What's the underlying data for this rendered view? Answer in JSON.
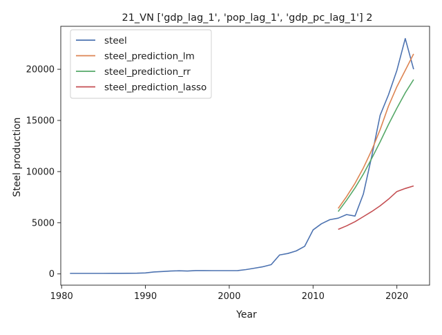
{
  "chart_data": {
    "type": "line",
    "title": "21_VN ['gdp_lag_1', 'pop_lag_1', 'gdp_pc_lag_1'] 2",
    "xlabel": "Year",
    "ylabel": "Steel production",
    "xlim": [
      1979.9,
      2023.9
    ],
    "ylim": [
      -1100,
      24200
    ],
    "xticks": [
      1980,
      1990,
      2000,
      2010,
      2020
    ],
    "yticks": [
      0,
      5000,
      10000,
      15000,
      20000
    ],
    "grid": false,
    "legend_position": "top-left",
    "series": [
      {
        "name": "steel",
        "color": "#4c72b0",
        "x": [
          1981,
          1982,
          1983,
          1984,
          1985,
          1986,
          1987,
          1988,
          1989,
          1990,
          1991,
          1992,
          1993,
          1994,
          1995,
          1996,
          1997,
          1998,
          1999,
          2000,
          2001,
          2002,
          2003,
          2004,
          2005,
          2006,
          2007,
          2008,
          2009,
          2010,
          2011,
          2012,
          2013,
          2014,
          2015,
          2016,
          2017,
          2018,
          2019,
          2020,
          2021,
          2022
        ],
        "y": [
          50,
          50,
          50,
          50,
          50,
          55,
          60,
          65,
          70,
          100,
          190,
          230,
          280,
          310,
          280,
          330,
          330,
          320,
          320,
          320,
          330,
          420,
          560,
          700,
          900,
          1850,
          2000,
          2250,
          2700,
          4300,
          4900,
          5300,
          5450,
          5800,
          5650,
          7800,
          11500,
          15500,
          17500,
          19900,
          23000,
          20000
        ]
      },
      {
        "name": "steel_prediction_lm",
        "color": "#dd8452",
        "x": [
          2013,
          2014,
          2015,
          2016,
          2017,
          2018,
          2019,
          2020,
          2021,
          2022
        ],
        "y": [
          6400,
          7550,
          8850,
          10350,
          12100,
          14100,
          16400,
          18300,
          19900,
          21500
        ]
      },
      {
        "name": "steel_prediction_rr",
        "color": "#55a868",
        "x": [
          2013,
          2014,
          2015,
          2016,
          2017,
          2018,
          2019,
          2020,
          2021,
          2022
        ],
        "y": [
          6100,
          7200,
          8400,
          9750,
          11300,
          12900,
          14600,
          16200,
          17700,
          19000
        ]
      },
      {
        "name": "steel_prediction_lasso",
        "color": "#c44e52",
        "x": [
          2013,
          2014,
          2015,
          2016,
          2017,
          2018,
          2019,
          2020,
          2021,
          2022
        ],
        "y": [
          4350,
          4700,
          5100,
          5600,
          6100,
          6650,
          7300,
          8050,
          8350,
          8600
        ]
      }
    ]
  }
}
